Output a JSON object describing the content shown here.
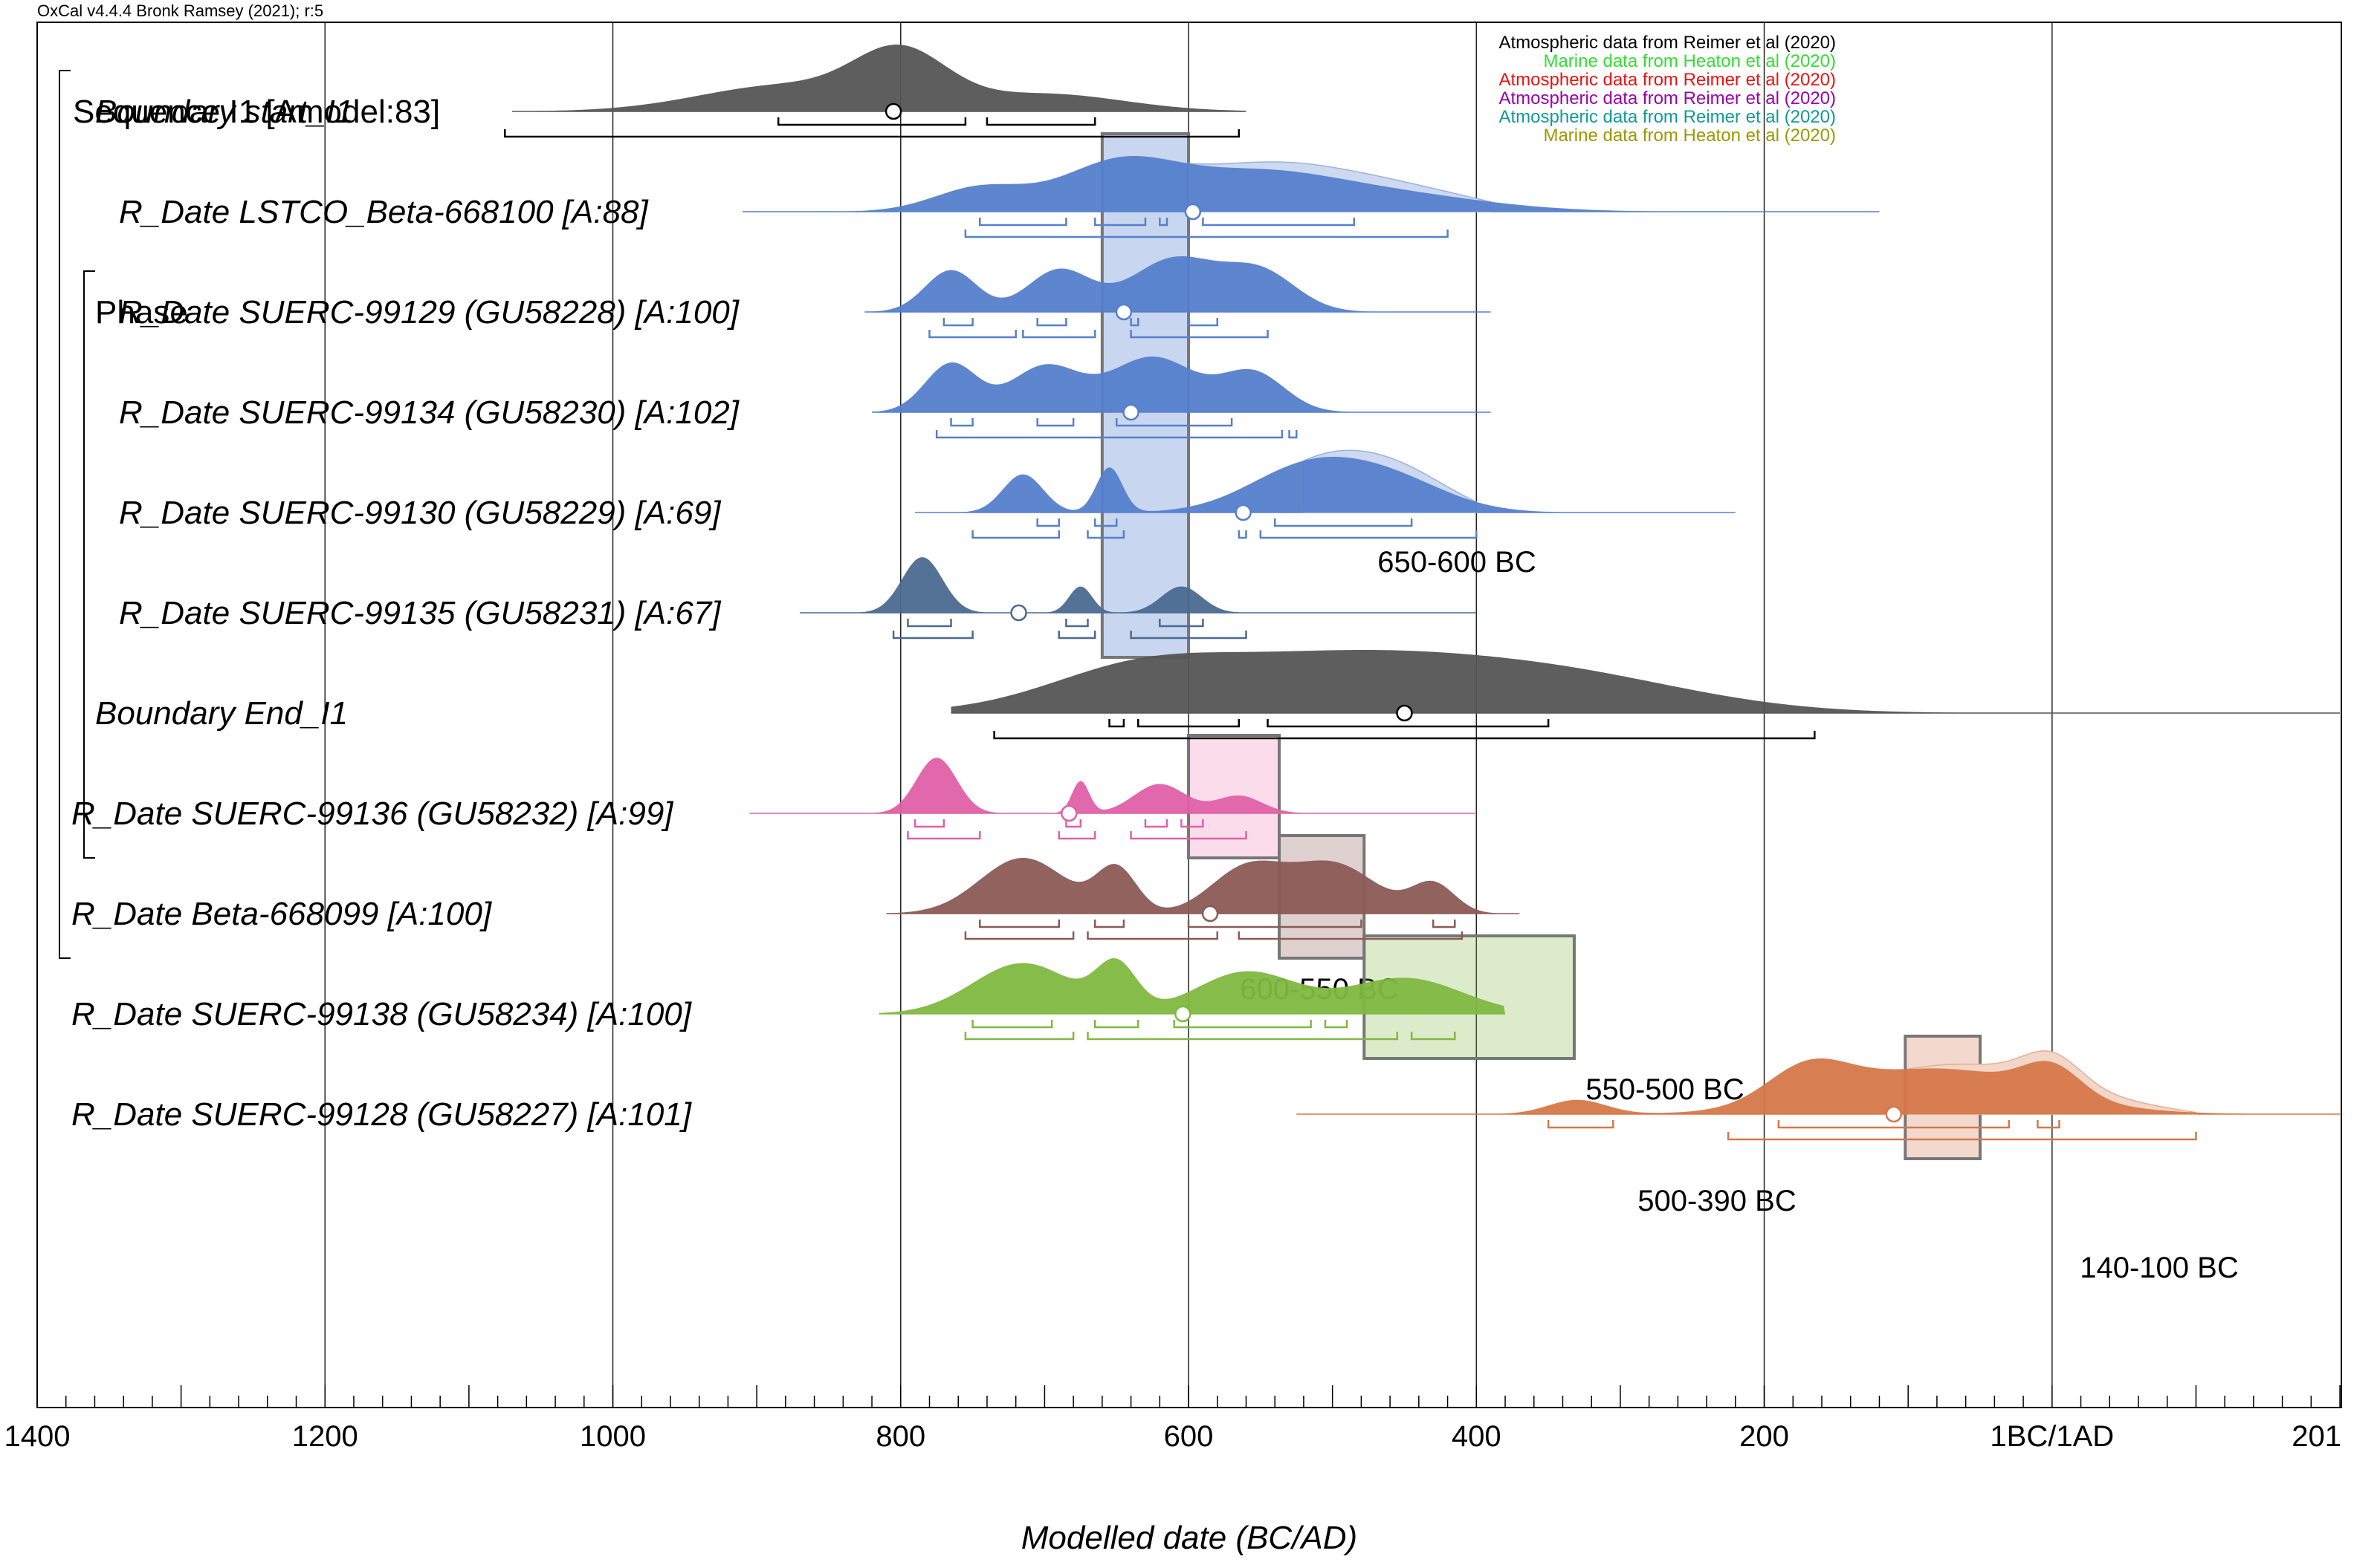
{
  "header": "OxCal v4.4.4 Bronk Ramsey (2021); r:5",
  "chart_data": {
    "type": "ridgeline",
    "xlabel": "Modelled date (BC/AD)",
    "xlim": [
      -1400,
      201
    ],
    "grid": "vertical lines every 200 years",
    "x_ticks": [
      {
        "value": -1400,
        "label": "1400"
      },
      {
        "value": -1200,
        "label": "1200"
      },
      {
        "value": -1000,
        "label": "1000"
      },
      {
        "value": -800,
        "label": "800"
      },
      {
        "value": -600,
        "label": "600"
      },
      {
        "value": -400,
        "label": "400"
      },
      {
        "value": -200,
        "label": "200"
      },
      {
        "value": 0,
        "label": "1BC/1AD"
      },
      {
        "value": 201,
        "label": "201"
      }
    ],
    "legend": [
      {
        "text": "Atmospheric data from Reimer et al (2020)",
        "color": "#000000"
      },
      {
        "text": "Marine data from Heaton et al (2020)",
        "color": "#33dd33"
      },
      {
        "text": "Atmospheric data from Reimer et al (2020)",
        "color": "#ee1111"
      },
      {
        "text": "Atmospheric data from Reimer et al (2020)",
        "color": "#9900aa"
      },
      {
        "text": "Atmospheric data from Reimer et al (2020)",
        "color": "#119999"
      },
      {
        "text": "Marine data from Heaton et al (2020)",
        "color": "#999900"
      }
    ],
    "groups": [
      {
        "label": "Sequence I1 [Amodel:83]",
        "type": "sequence"
      },
      {
        "label": "Phase",
        "type": "phase"
      }
    ],
    "rows": [
      {
        "label": "Boundary start_I1",
        "color": "#555555",
        "extent": [
          -1070,
          -560
        ],
        "median": -805,
        "peaks": [
          {
            "x": -800,
            "w": 32,
            "h": 0.9
          },
          {
            "x": -880,
            "w": 60,
            "h": 0.45
          },
          {
            "x": -700,
            "w": 55,
            "h": 0.3
          }
        ],
        "range68": [
          [
            -885,
            -755
          ],
          [
            -740,
            -665
          ]
        ],
        "range95": [
          [
            -1075,
            -565
          ]
        ]
      },
      {
        "label": "R_Date LSTCO_Beta-668100 [A:88]",
        "color": "#5580cc",
        "extent": [
          -910,
          -120
        ],
        "median": -597,
        "prior_tail": [
          -600,
          -390
        ],
        "peaks": [
          {
            "x": -745,
            "w": 32,
            "h": 0.45
          },
          {
            "x": -650,
            "w": 40,
            "h": 0.85
          },
          {
            "x": -560,
            "w": 55,
            "h": 0.6
          },
          {
            "x": -470,
            "w": 70,
            "h": 0.35
          }
        ],
        "range68": [
          [
            -745,
            -685
          ],
          [
            -665,
            -630
          ],
          [
            -620,
            -615
          ],
          [
            -590,
            -485
          ]
        ],
        "range95": [
          [
            -755,
            -420
          ]
        ]
      },
      {
        "label": "R_Date SUERC-99129 (GU58228) [A:100]",
        "color": "#5580cc",
        "extent": [
          -825,
          -390
        ],
        "median": -645,
        "peaks": [
          {
            "x": -765,
            "w": 18,
            "h": 0.75
          },
          {
            "x": -690,
            "w": 22,
            "h": 0.75
          },
          {
            "x": -610,
            "w": 30,
            "h": 0.95
          },
          {
            "x": -550,
            "w": 25,
            "h": 0.7
          }
        ],
        "range68": [
          [
            -770,
            -750
          ],
          [
            -705,
            -685
          ],
          [
            -640,
            -635
          ],
          [
            -600,
            -580
          ]
        ],
        "range95": [
          [
            -780,
            -720
          ],
          [
            -715,
            -665
          ],
          [
            -640,
            -545
          ]
        ]
      },
      {
        "label": "R_Date SUERC-99134 (GU58230) [A:102]",
        "color": "#5580cc",
        "extent": [
          -820,
          -390
        ],
        "median": -640,
        "peaks": [
          {
            "x": -765,
            "w": 18,
            "h": 0.75
          },
          {
            "x": -700,
            "w": 24,
            "h": 0.7
          },
          {
            "x": -625,
            "w": 30,
            "h": 0.85
          },
          {
            "x": -555,
            "w": 22,
            "h": 0.6
          }
        ],
        "range68": [
          [
            -765,
            -750
          ],
          [
            -705,
            -680
          ],
          [
            -650,
            -570
          ]
        ],
        "range95": [
          [
            -775,
            -535
          ],
          [
            -530,
            -525
          ]
        ]
      },
      {
        "label": "R_Date SUERC-99130 (GU58229) [A:69]",
        "color": "#5580cc",
        "extent": [
          -790,
          -220
        ],
        "median": -562,
        "prior_tail": [
          -520,
          -400
        ],
        "peaks": [
          {
            "x": -715,
            "w": 14,
            "h": 0.55
          },
          {
            "x": -655,
            "w": 9,
            "h": 0.65
          },
          {
            "x": -520,
            "w": 40,
            "h": 0.6
          },
          {
            "x": -460,
            "w": 40,
            "h": 0.45
          }
        ],
        "range68": [
          [
            -705,
            -690
          ],
          [
            -665,
            -650
          ],
          [
            -540,
            -445
          ]
        ],
        "range95": [
          [
            -750,
            -690
          ],
          [
            -670,
            -645
          ],
          [
            -565,
            -560
          ],
          [
            -550,
            -400
          ]
        ]
      },
      {
        "label": "R_Date SUERC-99135 (GU58231) [A:67]",
        "color": "#4a6a90",
        "extent": [
          -870,
          -400
        ],
        "median": -718,
        "peaks": [
          {
            "x": -785,
            "w": 14,
            "h": 0.95
          },
          {
            "x": -675,
            "w": 8,
            "h": 0.45
          },
          {
            "x": -605,
            "w": 14,
            "h": 0.45
          }
        ],
        "range68": [
          [
            -795,
            -765
          ],
          [
            -685,
            -670
          ],
          [
            -620,
            -590
          ]
        ],
        "range95": [
          [
            -805,
            -750
          ],
          [
            -690,
            -665
          ],
          [
            -640,
            -560
          ]
        ]
      },
      {
        "label": "Boundary End_I1",
        "color": "#555555",
        "extent": [
          -765,
          200
        ],
        "median": -450,
        "peaks": [
          {
            "x": -500,
            "w": 110,
            "h": 0.7
          },
          {
            "x": -640,
            "w": 60,
            "h": 0.35
          },
          {
            "x": -330,
            "w": 90,
            "h": 0.35
          }
        ],
        "range68": [
          [
            -655,
            -645
          ],
          [
            -635,
            -565
          ],
          [
            -545,
            -350
          ]
        ],
        "range95": [
          [
            -735,
            -165
          ]
        ]
      },
      {
        "label": "R_Date SUERC-99136 (GU58232) [A:99]",
        "color": "#e060a8",
        "extent": [
          -905,
          -400
        ],
        "median": -683,
        "peaks": [
          {
            "x": -775,
            "w": 14,
            "h": 0.95
          },
          {
            "x": -675,
            "w": 6,
            "h": 0.55
          },
          {
            "x": -620,
            "w": 18,
            "h": 0.5
          },
          {
            "x": -565,
            "w": 16,
            "h": 0.3
          }
        ],
        "range68": [
          [
            -790,
            -770
          ],
          [
            -685,
            -675
          ],
          [
            -630,
            -615
          ],
          [
            -605,
            -590
          ]
        ],
        "range95": [
          [
            -795,
            -745
          ],
          [
            -690,
            -665
          ],
          [
            -640,
            -560
          ]
        ]
      },
      {
        "label": "R_Date Beta-668099 [A:100]",
        "color": "#8b5a55",
        "extent": [
          -810,
          -370
        ],
        "median": -585,
        "peaks": [
          {
            "x": -715,
            "w": 30,
            "h": 0.95
          },
          {
            "x": -650,
            "w": 14,
            "h": 0.75
          },
          {
            "x": -560,
            "w": 25,
            "h": 0.75
          },
          {
            "x": -500,
            "w": 30,
            "h": 0.85
          },
          {
            "x": -430,
            "w": 15,
            "h": 0.5
          }
        ],
        "range68": [
          [
            -745,
            -690
          ],
          [
            -665,
            -645
          ],
          [
            -600,
            -480
          ],
          [
            -430,
            -415
          ]
        ],
        "range95": [
          [
            -755,
            -680
          ],
          [
            -670,
            -580
          ],
          [
            -565,
            -410
          ]
        ]
      },
      {
        "label": "R_Date SUERC-99138 (GU58234) [A:100]",
        "color": "#80b840",
        "extent": [
          -815,
          -380
        ],
        "median": -604,
        "peaks": [
          {
            "x": -715,
            "w": 35,
            "h": 0.85
          },
          {
            "x": -650,
            "w": 14,
            "h": 0.75
          },
          {
            "x": -560,
            "w": 35,
            "h": 0.7
          },
          {
            "x": -450,
            "w": 40,
            "h": 0.6
          }
        ],
        "range68": [
          [
            -750,
            -695
          ],
          [
            -665,
            -635
          ],
          [
            -610,
            -515
          ],
          [
            -505,
            -490
          ]
        ],
        "range95": [
          [
            -755,
            -680
          ],
          [
            -670,
            -455
          ],
          [
            -445,
            -415
          ]
        ]
      },
      {
        "label": "R_Date SUERC-99128 (GU58227) [A:101]",
        "color": "#d5784a",
        "extent": [
          -525,
          201
        ],
        "median": -110,
        "prior_tail": [
          -100,
          100
        ],
        "peaks": [
          {
            "x": -330,
            "w": 20,
            "h": 0.25
          },
          {
            "x": -170,
            "w": 28,
            "h": 0.6
          },
          {
            "x": -80,
            "w": 70,
            "h": 0.8
          },
          {
            "x": 0,
            "w": 20,
            "h": 0.5
          }
        ],
        "range68": [
          [
            -350,
            -305
          ],
          [
            -190,
            -30
          ],
          [
            -10,
            5
          ]
        ],
        "range95": [
          [
            -225,
            100
          ]
        ]
      }
    ],
    "period_boxes": [
      {
        "label": "650-600 BC",
        "from": -660,
        "to": -600,
        "rows": [
          1,
          5
        ],
        "color": "#3a6cc8"
      },
      {
        "label": "600-550 BC",
        "from": -600,
        "to": -537,
        "rows": [
          7,
          7
        ],
        "color": "#f080b8"
      },
      {
        "label": "550-500 BC",
        "from": -537,
        "to": -478,
        "rows": [
          8,
          8
        ],
        "color": "#8b5a55"
      },
      {
        "label": "500-390 BC",
        "from": -478,
        "to": -332,
        "rows": [
          9,
          9
        ],
        "color": "#80b840"
      },
      {
        "label": "140-100 BC",
        "from": -102,
        "to": -50,
        "rows": [
          10,
          10
        ],
        "color": "#d5784a"
      }
    ]
  }
}
